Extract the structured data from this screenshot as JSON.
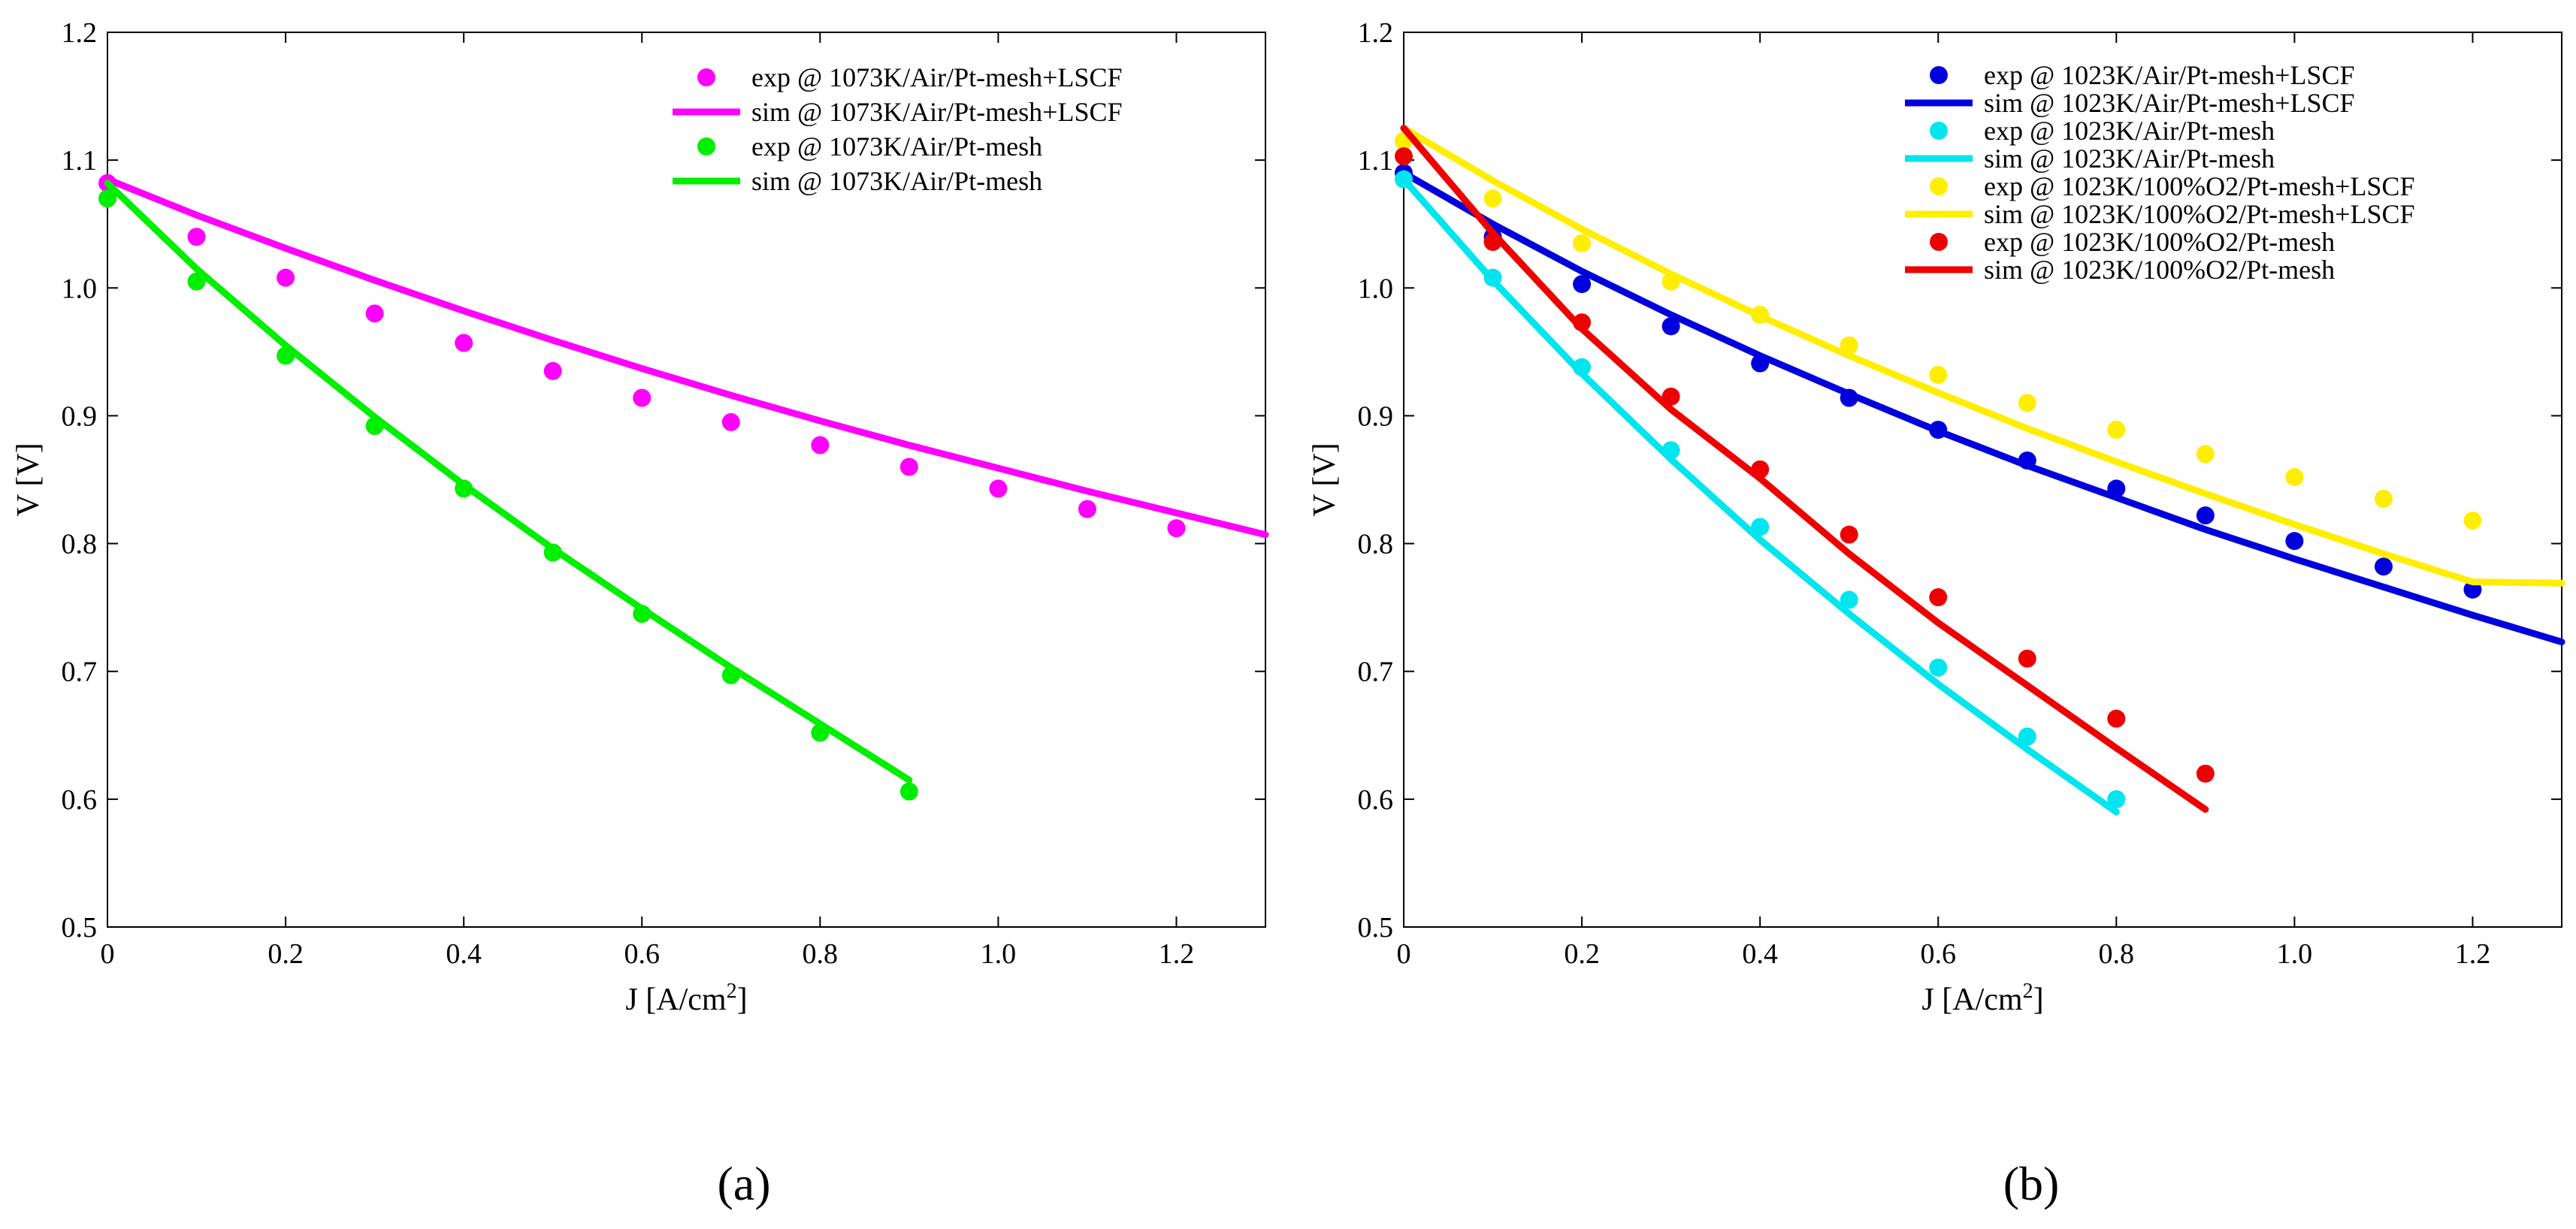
{
  "chart_data": [
    {
      "type": "line",
      "panel_label": "(a)",
      "xlabel": "J [A/cm",
      "xlabel_superscript": "2",
      "xlabel_close": "]",
      "ylabel": "V [V]",
      "xlim": [
        0,
        1.3
      ],
      "ylim": [
        0.5,
        1.2
      ],
      "xticks": [
        0,
        0.2,
        0.4,
        0.6,
        0.8,
        1.0,
        1.2
      ],
      "xtick_labels": [
        "0",
        "0.2",
        "0.4",
        "0.6",
        "0.8",
        "1.0",
        "1.2"
      ],
      "yticks": [
        0.5,
        0.6,
        0.7,
        0.8,
        0.9,
        1.0,
        1.1,
        1.2
      ],
      "ytick_labels": [
        "0.5",
        "0.6",
        "0.7",
        "0.8",
        "0.9",
        "1.0",
        "1.1",
        "1.2"
      ],
      "legend_position": "top-right",
      "series": [
        {
          "name": "exp @ 1073K/Air/Pt-mesh+LSCF",
          "kind": "scatter",
          "color": "#ff00ff",
          "x": [
            0,
            0.1,
            0.2,
            0.3,
            0.4,
            0.5,
            0.6,
            0.7,
            0.8,
            0.9,
            1.0,
            1.1,
            1.2
          ],
          "y": [
            1.082,
            1.04,
            1.008,
            0.98,
            0.957,
            0.935,
            0.914,
            0.895,
            0.877,
            0.86,
            0.843,
            0.827,
            0.812
          ]
        },
        {
          "name": "sim @ 1073K/Air/Pt-mesh+LSCF",
          "kind": "line",
          "color": "#ff00ff",
          "x": [
            0,
            0.1,
            0.2,
            0.3,
            0.4,
            0.5,
            0.6,
            0.7,
            0.8,
            0.9,
            1.0,
            1.1,
            1.2,
            1.3
          ],
          "y": [
            1.085,
            1.057,
            1.031,
            1.006,
            0.982,
            0.959,
            0.937,
            0.916,
            0.896,
            0.877,
            0.859,
            0.841,
            0.824,
            0.807
          ]
        },
        {
          "name": "exp @ 1073K/Air/Pt-mesh",
          "kind": "scatter",
          "color": "#00ee00",
          "x": [
            0,
            0.1,
            0.2,
            0.3,
            0.4,
            0.5,
            0.6,
            0.7,
            0.8,
            0.9
          ],
          "y": [
            1.07,
            1.005,
            0.947,
            0.892,
            0.843,
            0.793,
            0.745,
            0.697,
            0.652,
            0.606
          ]
        },
        {
          "name": "sim @ 1073K/Air/Pt-mesh",
          "kind": "line",
          "color": "#00ee00",
          "x": [
            0,
            0.1,
            0.2,
            0.3,
            0.4,
            0.5,
            0.6,
            0.7,
            0.8,
            0.9
          ],
          "y": [
            1.082,
            1.015,
            0.955,
            0.899,
            0.846,
            0.796,
            0.749,
            0.703,
            0.659,
            0.615
          ]
        }
      ]
    },
    {
      "type": "line",
      "panel_label": "(b)",
      "xlabel": "J [A/cm",
      "xlabel_superscript": "2",
      "xlabel_close": "]",
      "ylabel": "V [V]",
      "xlim": [
        0,
        1.3
      ],
      "ylim": [
        0.5,
        1.2
      ],
      "xticks": [
        0,
        0.2,
        0.4,
        0.6,
        0.8,
        1.0,
        1.2
      ],
      "xtick_labels": [
        "0",
        "0.2",
        "0.4",
        "0.6",
        "0.8",
        "1.0",
        "1.2"
      ],
      "yticks": [
        0.5,
        0.6,
        0.7,
        0.8,
        0.9,
        1.0,
        1.1,
        1.2
      ],
      "ytick_labels": [
        "0.5",
        "0.6",
        "0.7",
        "0.8",
        "0.9",
        "1.0",
        "1.1",
        "1.2"
      ],
      "legend_position": "top-right",
      "series": [
        {
          "name": "exp @ 1023K/Air/Pt-mesh+LSCF",
          "kind": "scatter",
          "color": "#0000dd",
          "x": [
            0,
            0.1,
            0.2,
            0.3,
            0.4,
            0.5,
            0.6,
            0.7,
            0.8,
            0.9,
            1.0,
            1.1,
            1.2
          ],
          "y": [
            1.09,
            1.04,
            1.003,
            0.97,
            0.941,
            0.914,
            0.889,
            0.865,
            0.843,
            0.822,
            0.802,
            0.782,
            0.764
          ]
        },
        {
          "name": "sim @ 1023K/Air/Pt-mesh+LSCF",
          "kind": "line",
          "color": "#0000dd",
          "x": [
            0,
            0.1,
            0.2,
            0.3,
            0.4,
            0.5,
            0.6,
            0.7,
            0.8,
            0.9,
            1.0,
            1.1,
            1.2,
            1.3
          ],
          "y": [
            1.09,
            1.05,
            1.013,
            0.979,
            0.947,
            0.917,
            0.888,
            0.861,
            0.836,
            0.811,
            0.788,
            0.766,
            0.744,
            0.723
          ]
        },
        {
          "name": "exp @ 1023K/Air/Pt-mesh",
          "kind": "scatter",
          "color": "#00e5ee",
          "x": [
            0,
            0.1,
            0.2,
            0.3,
            0.4,
            0.5,
            0.6,
            0.7,
            0.8
          ],
          "y": [
            1.085,
            1.008,
            0.938,
            0.873,
            0.813,
            0.756,
            0.703,
            0.649,
            0.6
          ]
        },
        {
          "name": "sim @ 1023K/Air/Pt-mesh",
          "kind": "line",
          "color": "#00e5ee",
          "x": [
            0,
            0.1,
            0.2,
            0.3,
            0.4,
            0.5,
            0.6,
            0.7,
            0.8
          ],
          "y": [
            1.085,
            1.006,
            0.933,
            0.866,
            0.803,
            0.745,
            0.69,
            0.639,
            0.59
          ]
        },
        {
          "name": "exp @ 1023K/100%O2/Pt-mesh+LSCF",
          "kind": "scatter",
          "color": "#ffee00",
          "x": [
            0,
            0.1,
            0.2,
            0.3,
            0.4,
            0.5,
            0.6,
            0.7,
            0.8,
            0.9,
            1.0,
            1.1,
            1.2
          ],
          "y": [
            1.115,
            1.07,
            1.035,
            1.005,
            0.979,
            0.955,
            0.932,
            0.91,
            0.889,
            0.87,
            0.852,
            0.835,
            0.818
          ]
        },
        {
          "name": "sim @ 1023K/100%O2/Pt-mesh+LSCF",
          "kind": "line",
          "color": "#ffee00",
          "x": [
            0,
            0.1,
            0.2,
            0.3,
            0.4,
            0.5,
            0.6,
            0.7,
            0.8,
            0.9,
            1.0,
            1.1,
            1.2,
            1.3
          ],
          "y": [
            1.125,
            1.084,
            1.046,
            1.011,
            0.978,
            0.947,
            0.918,
            0.89,
            0.864,
            0.839,
            0.815,
            0.792,
            0.77,
            0.769
          ]
        },
        {
          "name": "exp @ 1023K/100%O2/Pt-mesh",
          "kind": "scatter",
          "color": "#ee0000",
          "x": [
            0,
            0.1,
            0.2,
            0.3,
            0.4,
            0.5,
            0.6,
            0.7,
            0.8,
            0.9
          ],
          "y": [
            1.103,
            1.036,
            0.973,
            0.915,
            0.858,
            0.807,
            0.758,
            0.71,
            0.663,
            0.62
          ]
        },
        {
          "name": "sim @ 1023K/100%O2/Pt-mesh",
          "kind": "line",
          "color": "#ee0000",
          "x": [
            0,
            0.1,
            0.2,
            0.3,
            0.4,
            0.5,
            0.6,
            0.7,
            0.8,
            0.9
          ],
          "y": [
            1.125,
            1.043,
            0.968,
            0.905,
            0.851,
            0.792,
            0.738,
            0.689,
            0.64,
            0.592
          ]
        }
      ]
    }
  ]
}
